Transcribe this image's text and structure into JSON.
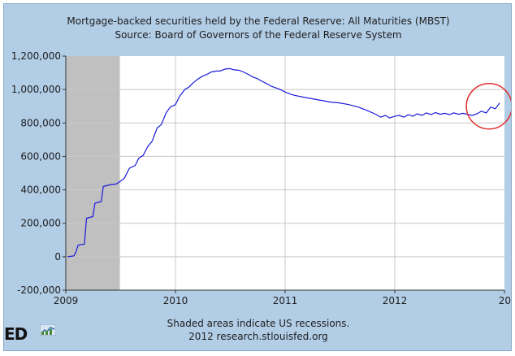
{
  "chart_data": {
    "type": "line",
    "title": "Mortgage-backed securities held by the Federal Reserve: All Maturities (MBST)",
    "subtitle": "Source: Board of Governors of the Federal Reserve System",
    "xlabel": "",
    "ylabel": "",
    "x_domain": [
      "2009-01-01",
      "2012-12-31"
    ],
    "ylim": [
      -200000,
      1200000
    ],
    "y_ticks": [
      -200000,
      0,
      200000,
      400000,
      600000,
      800000,
      1000000,
      1200000
    ],
    "y_tick_labels": [
      "-200,000",
      "0",
      "200,000",
      "400,000",
      "600,000",
      "800,000",
      "1,000,000",
      "1,200,000"
    ],
    "x_tick_labels": [
      "2009",
      "2010",
      "2011",
      "2012",
      "20"
    ],
    "x_ticks": [
      "2009-01-01",
      "2010-01-01",
      "2011-01-01",
      "2012-01-01",
      "2013-01-01"
    ],
    "grid": true,
    "recession": {
      "start": "2009-01-01",
      "end": "2009-06-30"
    },
    "highlight_circle_center": "2012-11-10",
    "highlight_circle_value": 900000,
    "line_color": "#1a1adc",
    "recession_color": "#c0c0c0",
    "highlight_color": "#e0302e",
    "series": [
      {
        "points": [
          [
            "2009-01-07",
            0
          ],
          [
            "2009-01-28",
            5000
          ],
          [
            "2009-02-04",
            30000
          ],
          [
            "2009-02-11",
            70000
          ],
          [
            "2009-03-04",
            75000
          ],
          [
            "2009-03-11",
            230000
          ],
          [
            "2009-04-01",
            240000
          ],
          [
            "2009-04-08",
            320000
          ],
          [
            "2009-04-29",
            330000
          ],
          [
            "2009-05-06",
            420000
          ],
          [
            "2009-05-27",
            430000
          ],
          [
            "2009-06-17",
            435000
          ],
          [
            "2009-07-01",
            450000
          ],
          [
            "2009-07-15",
            470000
          ],
          [
            "2009-08-01",
            530000
          ],
          [
            "2009-08-20",
            545000
          ],
          [
            "2009-09-01",
            590000
          ],
          [
            "2009-09-15",
            605000
          ],
          [
            "2009-10-01",
            660000
          ],
          [
            "2009-10-15",
            690000
          ],
          [
            "2009-11-01",
            770000
          ],
          [
            "2009-11-15",
            790000
          ],
          [
            "2009-12-01",
            860000
          ],
          [
            "2009-12-15",
            895000
          ],
          [
            "2010-01-01",
            910000
          ],
          [
            "2010-01-15",
            960000
          ],
          [
            "2010-02-01",
            1000000
          ],
          [
            "2010-02-15",
            1015000
          ],
          [
            "2010-03-01",
            1040000
          ],
          [
            "2010-03-15",
            1060000
          ],
          [
            "2010-04-01",
            1080000
          ],
          [
            "2010-04-15",
            1090000
          ],
          [
            "2010-05-01",
            1105000
          ],
          [
            "2010-05-15",
            1110000
          ],
          [
            "2010-06-01",
            1112000
          ],
          [
            "2010-06-15",
            1122000
          ],
          [
            "2010-07-01",
            1125000
          ],
          [
            "2010-07-15",
            1118000
          ],
          [
            "2010-08-01",
            1115000
          ],
          [
            "2010-08-15",
            1105000
          ],
          [
            "2010-09-01",
            1090000
          ],
          [
            "2010-09-15",
            1075000
          ],
          [
            "2010-10-01",
            1065000
          ],
          [
            "2010-10-15",
            1050000
          ],
          [
            "2010-11-01",
            1035000
          ],
          [
            "2010-11-15",
            1020000
          ],
          [
            "2010-12-01",
            1010000
          ],
          [
            "2010-12-15",
            1000000
          ],
          [
            "2011-01-01",
            985000
          ],
          [
            "2011-01-15",
            975000
          ],
          [
            "2011-02-01",
            965000
          ],
          [
            "2011-03-01",
            955000
          ],
          [
            "2011-04-01",
            945000
          ],
          [
            "2011-05-01",
            935000
          ],
          [
            "2011-06-01",
            925000
          ],
          [
            "2011-07-01",
            920000
          ],
          [
            "2011-08-01",
            910000
          ],
          [
            "2011-09-01",
            895000
          ],
          [
            "2011-10-01",
            875000
          ],
          [
            "2011-11-01",
            850000
          ],
          [
            "2011-11-15",
            835000
          ],
          [
            "2011-12-01",
            845000
          ],
          [
            "2011-12-15",
            830000
          ],
          [
            "2012-01-01",
            840000
          ],
          [
            "2012-01-15",
            845000
          ],
          [
            "2012-02-01",
            835000
          ],
          [
            "2012-02-15",
            850000
          ],
          [
            "2012-03-01",
            840000
          ],
          [
            "2012-03-15",
            855000
          ],
          [
            "2012-04-01",
            845000
          ],
          [
            "2012-04-15",
            860000
          ],
          [
            "2012-05-01",
            850000
          ],
          [
            "2012-05-15",
            862000
          ],
          [
            "2012-06-01",
            852000
          ],
          [
            "2012-06-15",
            858000
          ],
          [
            "2012-07-01",
            850000
          ],
          [
            "2012-07-15",
            860000
          ],
          [
            "2012-08-01",
            852000
          ],
          [
            "2012-08-15",
            858000
          ],
          [
            "2012-09-01",
            850000
          ],
          [
            "2012-09-15",
            845000
          ],
          [
            "2012-10-01",
            855000
          ],
          [
            "2012-10-15",
            870000
          ],
          [
            "2012-11-01",
            860000
          ],
          [
            "2012-11-15",
            895000
          ],
          [
            "2012-12-01",
            885000
          ],
          [
            "2012-12-15",
            920000
          ]
        ]
      }
    ]
  },
  "footer": {
    "note": "Shaded areas indicate US recessions.",
    "credit": "2012 research.stlouisfed.org",
    "logo_text": "ED"
  }
}
